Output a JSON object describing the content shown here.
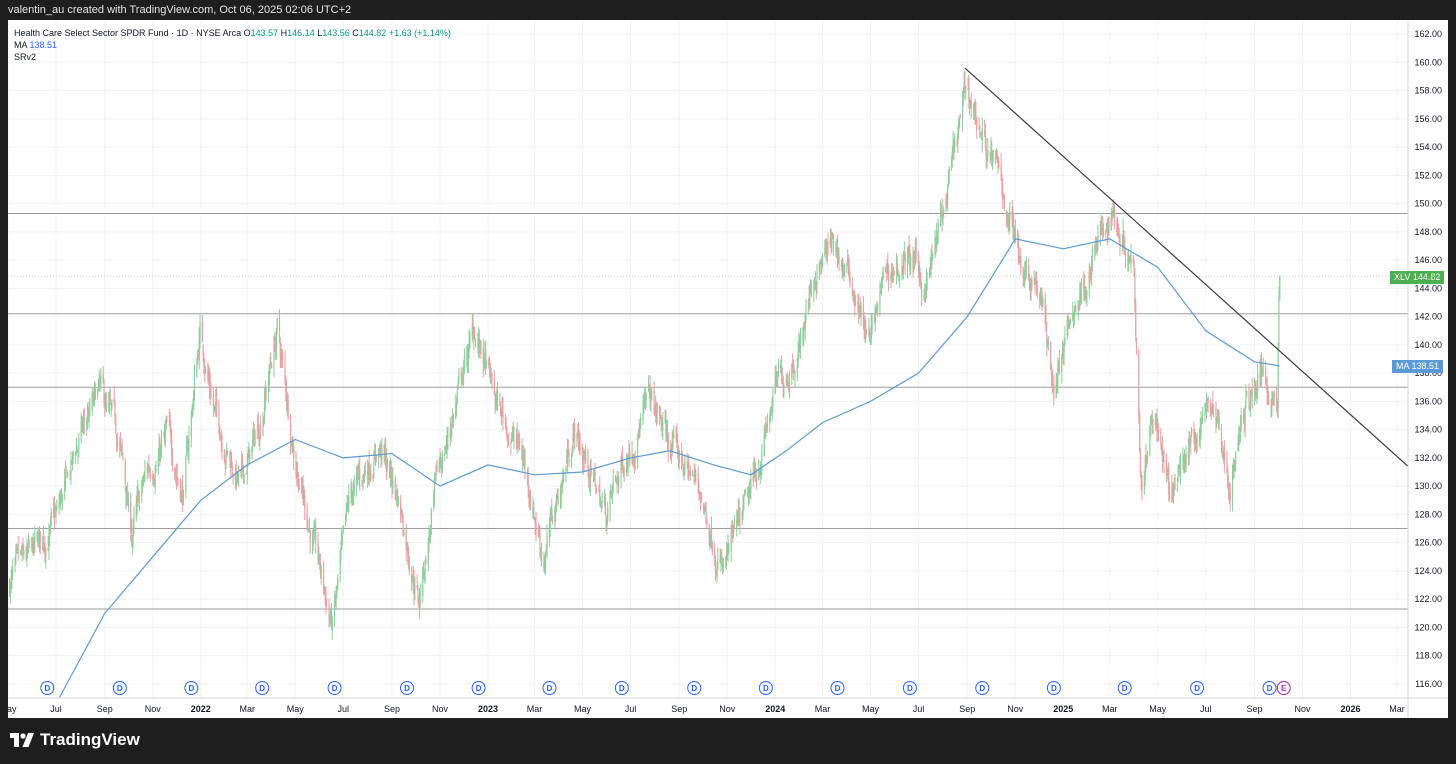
{
  "header": {
    "credit": "valentin_au created with TradingView.com, Oct 06, 2025 02:06 UTC+2"
  },
  "legend": {
    "instrument": "Health Care Select Sector SPDR Fund · 1D · NYSE Arca",
    "open_key": "O",
    "open": "143.57",
    "high_key": "H",
    "high": "146.14",
    "low_key": "L",
    "low": "143.56",
    "close_key": "C",
    "close": "144.82",
    "change": "+1.63 (+1.14%)",
    "ma_label": "MA",
    "ma_value": "138.51",
    "indicator": "SRv2"
  },
  "price_tags": {
    "symbol": {
      "label": "XLV",
      "value": "144.82",
      "color": "#4caf50"
    },
    "ma": {
      "label": "MA",
      "value": "138.51",
      "color": "#5b9bd5"
    }
  },
  "footer": {
    "brand": "TradingView"
  },
  "colors": {
    "up": "#8fce9a",
    "down": "#e5a3a3",
    "ma_line": "#5b9bd5",
    "sr_line": "#9e9e9e",
    "trend_line": "#3b3b3b",
    "dividend_marker": "#2962ff",
    "earnings_marker": "#9c27b0"
  },
  "chart_data": {
    "type": "candlestick",
    "title": "Health Care Select Sector SPDR Fund · 1D · NYSE Arca",
    "symbol": "XLV",
    "x_axis": {
      "start": "2021-05-01",
      "end": "2026-03-15",
      "ticks": [
        {
          "date": "2021-05-01",
          "label": "May"
        },
        {
          "date": "2021-07-01",
          "label": "Jul"
        },
        {
          "date": "2021-09-01",
          "label": "Sep"
        },
        {
          "date": "2021-11-01",
          "label": "Nov"
        },
        {
          "date": "2022-01-01",
          "label": "2022",
          "bold": true
        },
        {
          "date": "2022-03-01",
          "label": "Mar"
        },
        {
          "date": "2022-05-01",
          "label": "May"
        },
        {
          "date": "2022-07-01",
          "label": "Jul"
        },
        {
          "date": "2022-09-01",
          "label": "Sep"
        },
        {
          "date": "2022-11-01",
          "label": "Nov"
        },
        {
          "date": "2023-01-01",
          "label": "2023",
          "bold": true
        },
        {
          "date": "2023-03-01",
          "label": "Mar"
        },
        {
          "date": "2023-05-01",
          "label": "May"
        },
        {
          "date": "2023-07-01",
          "label": "Jul"
        },
        {
          "date": "2023-09-01",
          "label": "Sep"
        },
        {
          "date": "2023-11-01",
          "label": "Nov"
        },
        {
          "date": "2024-01-01",
          "label": "2024",
          "bold": true
        },
        {
          "date": "2024-03-01",
          "label": "Mar"
        },
        {
          "date": "2024-05-01",
          "label": "May"
        },
        {
          "date": "2024-07-01",
          "label": "Jul"
        },
        {
          "date": "2024-09-01",
          "label": "Sep"
        },
        {
          "date": "2024-11-01",
          "label": "Nov"
        },
        {
          "date": "2025-01-01",
          "label": "2025",
          "bold": true
        },
        {
          "date": "2025-03-01",
          "label": "Mar"
        },
        {
          "date": "2025-05-01",
          "label": "May"
        },
        {
          "date": "2025-07-01",
          "label": "Jul"
        },
        {
          "date": "2025-09-01",
          "label": "Sep"
        },
        {
          "date": "2025-11-01",
          "label": "Nov"
        },
        {
          "date": "2026-01-01",
          "label": "2026",
          "bold": true
        },
        {
          "date": "2026-03-01",
          "label": "Mar"
        }
      ]
    },
    "y_axis": {
      "ylim": [
        115,
        163
      ],
      "ticks": [
        "116.00",
        "118.00",
        "120.00",
        "122.00",
        "124.00",
        "126.00",
        "128.00",
        "130.00",
        "132.00",
        "134.00",
        "136.00",
        "138.00",
        "140.00",
        "142.00",
        "144.00",
        "146.00",
        "148.00",
        "150.00",
        "152.00",
        "154.00",
        "156.00",
        "158.00",
        "160.00",
        "162.00"
      ]
    },
    "grid": true,
    "price_path": [
      {
        "date": "2021-05-01",
        "price": 123.0
      },
      {
        "date": "2021-06-01",
        "price": 125.0
      },
      {
        "date": "2021-07-01",
        "price": 127.5
      },
      {
        "date": "2021-08-01",
        "price": 133.5
      },
      {
        "date": "2021-08-25",
        "price": 136.5
      },
      {
        "date": "2021-09-20",
        "price": 133.0
      },
      {
        "date": "2021-10-05",
        "price": 126.5
      },
      {
        "date": "2021-10-25",
        "price": 131.0
      },
      {
        "date": "2021-11-20",
        "price": 133.5
      },
      {
        "date": "2021-12-10",
        "price": 129.5
      },
      {
        "date": "2021-12-31",
        "price": 141.0
      },
      {
        "date": "2022-01-20",
        "price": 135.0
      },
      {
        "date": "2022-02-20",
        "price": 130.0
      },
      {
        "date": "2022-03-15",
        "price": 134.0
      },
      {
        "date": "2022-04-08",
        "price": 141.0
      },
      {
        "date": "2022-04-30",
        "price": 132.5
      },
      {
        "date": "2022-05-20",
        "price": 127.0
      },
      {
        "date": "2022-06-17",
        "price": 120.0
      },
      {
        "date": "2022-07-10",
        "price": 129.0
      },
      {
        "date": "2022-08-15",
        "price": 133.0
      },
      {
        "date": "2022-09-10",
        "price": 129.0
      },
      {
        "date": "2022-10-05",
        "price": 122.0
      },
      {
        "date": "2022-10-31",
        "price": 131.0
      },
      {
        "date": "2022-11-30",
        "price": 138.0
      },
      {
        "date": "2022-12-15",
        "price": 141.0
      },
      {
        "date": "2023-01-10",
        "price": 136.0
      },
      {
        "date": "2023-02-15",
        "price": 132.0
      },
      {
        "date": "2023-03-13",
        "price": 125.0
      },
      {
        "date": "2023-04-20",
        "price": 134.0
      },
      {
        "date": "2023-05-31",
        "price": 128.0
      },
      {
        "date": "2023-06-30",
        "price": 133.0
      },
      {
        "date": "2023-07-25",
        "price": 136.0
      },
      {
        "date": "2023-08-20",
        "price": 133.0
      },
      {
        "date": "2023-09-25",
        "price": 130.0
      },
      {
        "date": "2023-10-27",
        "price": 124.0
      },
      {
        "date": "2023-11-30",
        "price": 129.0
      },
      {
        "date": "2023-12-31",
        "price": 136.5
      },
      {
        "date": "2024-01-31",
        "price": 140.0
      },
      {
        "date": "2024-02-20",
        "price": 145.0
      },
      {
        "date": "2024-03-15",
        "price": 147.0
      },
      {
        "date": "2024-04-10",
        "price": 144.0
      },
      {
        "date": "2024-04-30",
        "price": 140.0
      },
      {
        "date": "2024-05-20",
        "price": 145.0
      },
      {
        "date": "2024-06-20",
        "price": 146.0
      },
      {
        "date": "2024-07-10",
        "price": 144.0
      },
      {
        "date": "2024-08-05",
        "price": 150.0
      },
      {
        "date": "2024-08-31",
        "price": 158.0
      },
      {
        "date": "2024-09-20",
        "price": 155.0
      },
      {
        "date": "2024-10-15",
        "price": 151.0
      },
      {
        "date": "2024-11-10",
        "price": 146.0
      },
      {
        "date": "2024-11-30",
        "price": 144.5
      },
      {
        "date": "2024-12-20",
        "price": 137.0
      },
      {
        "date": "2025-01-15",
        "price": 142.5
      },
      {
        "date": "2025-02-10",
        "price": 146.5
      },
      {
        "date": "2025-03-05",
        "price": 149.5
      },
      {
        "date": "2025-04-01",
        "price": 146.0
      },
      {
        "date": "2025-04-10",
        "price": 130.5
      },
      {
        "date": "2025-04-25",
        "price": 136.0
      },
      {
        "date": "2025-05-15",
        "price": 129.0
      },
      {
        "date": "2025-06-10",
        "price": 133.0
      },
      {
        "date": "2025-07-10",
        "price": 136.0
      },
      {
        "date": "2025-08-01",
        "price": 130.0
      },
      {
        "date": "2025-08-20",
        "price": 135.5
      },
      {
        "date": "2025-09-10",
        "price": 138.0
      },
      {
        "date": "2025-09-30",
        "price": 136.5
      },
      {
        "date": "2025-10-02",
        "price": 143.2
      },
      {
        "date": "2025-10-03",
        "price": 144.82
      }
    ],
    "moving_average": {
      "label": "MA",
      "last": 138.51,
      "points": [
        {
          "date": "2021-07-05",
          "price": 115.0
        },
        {
          "date": "2021-09-01",
          "price": 121.0
        },
        {
          "date": "2021-11-01",
          "price": 125.0
        },
        {
          "date": "2022-01-01",
          "price": 129.0
        },
        {
          "date": "2022-03-01",
          "price": 131.5
        },
        {
          "date": "2022-05-01",
          "price": 133.3
        },
        {
          "date": "2022-07-01",
          "price": 132.0
        },
        {
          "date": "2022-09-01",
          "price": 132.3
        },
        {
          "date": "2022-11-01",
          "price": 130.0
        },
        {
          "date": "2023-01-01",
          "price": 131.5
        },
        {
          "date": "2023-03-01",
          "price": 130.8
        },
        {
          "date": "2023-05-01",
          "price": 131.0
        },
        {
          "date": "2023-07-01",
          "price": 132.0
        },
        {
          "date": "2023-08-20",
          "price": 132.5
        },
        {
          "date": "2023-10-15",
          "price": 131.5
        },
        {
          "date": "2023-12-01",
          "price": 130.8
        },
        {
          "date": "2024-01-15",
          "price": 132.5
        },
        {
          "date": "2024-03-01",
          "price": 134.5
        },
        {
          "date": "2024-05-01",
          "price": 136.0
        },
        {
          "date": "2024-07-01",
          "price": 138.0
        },
        {
          "date": "2024-09-01",
          "price": 142.0
        },
        {
          "date": "2024-11-01",
          "price": 147.5
        },
        {
          "date": "2025-01-01",
          "price": 146.8
        },
        {
          "date": "2025-03-01",
          "price": 147.5
        },
        {
          "date": "2025-05-01",
          "price": 145.5
        },
        {
          "date": "2025-07-01",
          "price": 141.0
        },
        {
          "date": "2025-09-01",
          "price": 138.8
        },
        {
          "date": "2025-10-03",
          "price": 138.51
        }
      ]
    },
    "horizontal_levels": [
      149.3,
      142.2,
      137.0,
      127.0,
      121.3
    ],
    "trend_line": {
      "from": {
        "date": "2024-08-29",
        "price": 159.6
      },
      "to": {
        "date": "2026-03-15",
        "price": 131.4
      }
    },
    "dividend_markers": {
      "label": "D",
      "dates": [
        "2021-06-20",
        "2021-09-20",
        "2021-12-20",
        "2022-03-20",
        "2022-06-20",
        "2022-09-20",
        "2022-12-20",
        "2023-03-20",
        "2023-06-20",
        "2023-09-20",
        "2023-12-20",
        "2024-03-20",
        "2024-06-20",
        "2024-09-20",
        "2024-12-20",
        "2025-03-20",
        "2025-06-20",
        "2025-09-20"
      ]
    },
    "earnings_marker": {
      "label": "E",
      "date": "2025-10-03"
    }
  }
}
